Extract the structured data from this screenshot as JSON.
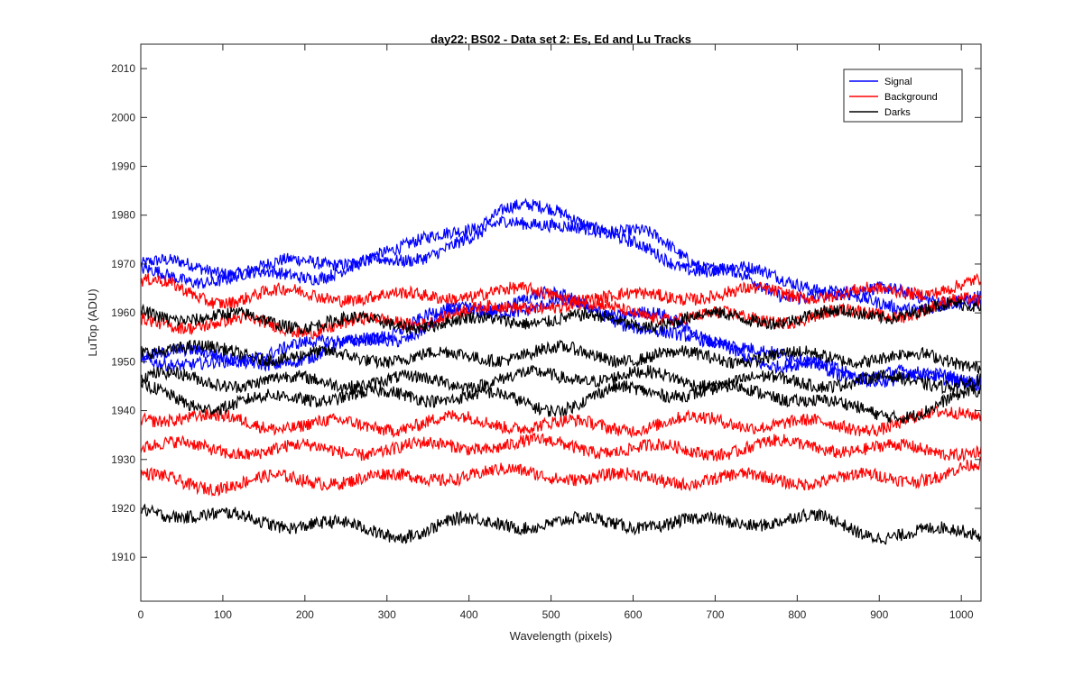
{
  "chart_data": {
    "type": "line",
    "title": "day22: BS02 - Data set 2: Es, Ed and Lu Tracks",
    "xlabel": "Wavelength (pixels)",
    "ylabel": "LuTop (ADU)",
    "xlim": [
      0,
      1024
    ],
    "ylim": [
      1901,
      2015
    ],
    "xticks": [
      0,
      100,
      200,
      300,
      400,
      500,
      600,
      700,
      800,
      900,
      1000
    ],
    "yticks": [
      1910,
      1920,
      1930,
      1940,
      1950,
      1960,
      1970,
      1980,
      1990,
      2000,
      2010
    ],
    "grid": false,
    "legend_position": "top-right",
    "legend": [
      {
        "name": "Signal",
        "color": "#0000ff"
      },
      {
        "name": "Background",
        "color": "#ff0000"
      },
      {
        "name": "Darks",
        "color": "#000000"
      }
    ],
    "series": [
      {
        "name": "Signal",
        "color": "#0000ff",
        "x": [
          0,
          100,
          200,
          300,
          400,
          450,
          500,
          600,
          700,
          800,
          900,
          1024
        ],
        "y": [
          1970,
          1969,
          1970,
          1972,
          1978,
          1981,
          1981,
          1976,
          1970,
          1966,
          1964,
          1963
        ]
      },
      {
        "name": "Signal",
        "color": "#0000ff",
        "x": [
          0,
          100,
          200,
          300,
          400,
          450,
          500,
          600,
          700,
          800,
          900,
          1024
        ],
        "y": [
          1968,
          1967,
          1968,
          1970,
          1975,
          1978,
          1979,
          1974,
          1968,
          1964,
          1962,
          1961
        ]
      },
      {
        "name": "Signal",
        "color": "#0000ff",
        "x": [
          0,
          100,
          200,
          300,
          400,
          500,
          600,
          700,
          800,
          900,
          1024
        ],
        "y": [
          1951,
          1949,
          1951,
          1955,
          1960,
          1962,
          1958,
          1953,
          1949,
          1947,
          1946
        ]
      },
      {
        "name": "Signal",
        "color": "#0000ff",
        "x": [
          0,
          100,
          200,
          300,
          400,
          500,
          600,
          700,
          800,
          900,
          1024
        ],
        "y": [
          1952,
          1951,
          1953,
          1956,
          1961,
          1963,
          1960,
          1955,
          1950,
          1947,
          1947
        ]
      },
      {
        "name": "Background",
        "color": "#ff0000",
        "x": [
          0,
          100,
          200,
          300,
          400,
          500,
          600,
          700,
          800,
          900,
          1024
        ],
        "y": [
          1966,
          1963,
          1964,
          1963,
          1964,
          1964,
          1963,
          1964,
          1964,
          1964,
          1966
        ]
      },
      {
        "name": "Background",
        "color": "#ff0000",
        "x": [
          0,
          100,
          200,
          300,
          400,
          500,
          600,
          700,
          800,
          900,
          1024
        ],
        "y": [
          1958,
          1958,
          1957,
          1958,
          1960,
          1962,
          1960,
          1959,
          1959,
          1960,
          1962
        ]
      },
      {
        "name": "Background",
        "color": "#ff0000",
        "x": [
          0,
          100,
          200,
          300,
          400,
          500,
          600,
          700,
          800,
          900,
          1024
        ],
        "y": [
          1939,
          1938,
          1937,
          1937,
          1938,
          1937,
          1937,
          1938,
          1937,
          1937,
          1940
        ]
      },
      {
        "name": "Background",
        "color": "#ff0000",
        "x": [
          0,
          100,
          200,
          300,
          400,
          500,
          600,
          700,
          800,
          900,
          1024
        ],
        "y": [
          1933,
          1932,
          1932,
          1932,
          1933,
          1933,
          1932,
          1932,
          1933,
          1932,
          1932
        ]
      },
      {
        "name": "Background",
        "color": "#ff0000",
        "x": [
          0,
          100,
          200,
          300,
          400,
          500,
          600,
          700,
          800,
          900,
          1024
        ],
        "y": [
          1926,
          1925,
          1926,
          1926,
          1927,
          1927,
          1926,
          1926,
          1926,
          1926,
          1928
        ]
      },
      {
        "name": "Darks",
        "color": "#000000",
        "x": [
          0,
          100,
          200,
          300,
          400,
          500,
          600,
          700,
          800,
          900,
          1024
        ],
        "y": [
          1960,
          1959,
          1958,
          1958,
          1958,
          1959,
          1958,
          1959,
          1959,
          1960,
          1961
        ]
      },
      {
        "name": "Darks",
        "color": "#000000",
        "x": [
          0,
          100,
          200,
          300,
          400,
          500,
          600,
          700,
          800,
          900,
          1024
        ],
        "y": [
          1953,
          1952,
          1951,
          1951,
          1951,
          1952,
          1951,
          1951,
          1951,
          1951,
          1950
        ]
      },
      {
        "name": "Darks",
        "color": "#000000",
        "x": [
          0,
          100,
          200,
          300,
          400,
          500,
          600,
          700,
          800,
          900,
          1024
        ],
        "y": [
          1947,
          1946,
          1946,
          1946,
          1946,
          1947,
          1947,
          1946,
          1946,
          1946,
          1946
        ]
      },
      {
        "name": "Darks",
        "color": "#000000",
        "x": [
          0,
          100,
          200,
          300,
          400,
          500,
          600,
          700,
          800,
          900,
          1024
        ],
        "y": [
          1944,
          1941,
          1943,
          1943,
          1943,
          1941,
          1944,
          1944,
          1943,
          1939,
          1943
        ]
      },
      {
        "name": "Darks",
        "color": "#000000",
        "x": [
          0,
          100,
          200,
          300,
          400,
          500,
          600,
          700,
          800,
          900,
          1024
        ],
        "y": [
          1920,
          1918,
          1917,
          1915,
          1917,
          1917,
          1917,
          1917,
          1918,
          1915,
          1915
        ]
      }
    ]
  }
}
